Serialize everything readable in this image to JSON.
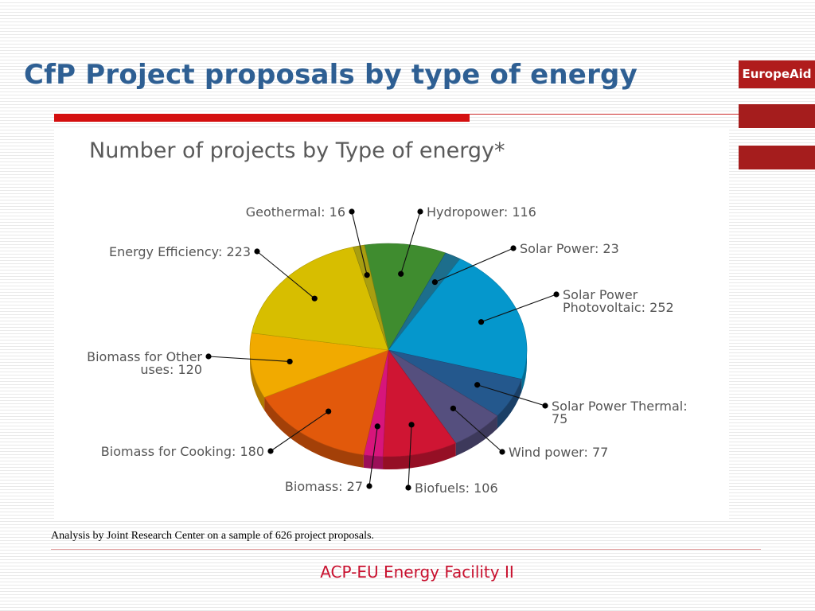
{
  "slide": {
    "title": "CfP Project proposals by type of energy",
    "brand": "EuropeAid",
    "footnote": "Analysis by Joint Research Center on a sample of 626 project proposals.",
    "footer": "ACP-EU Energy Facility II"
  },
  "chart_data": {
    "type": "pie",
    "title": "Number of projects by Type of energy*",
    "slices": [
      {
        "label": "Hydropower: 116",
        "category": "Hydropower",
        "value": 116,
        "color": "#3f8c2f"
      },
      {
        "label": "Solar Power: 23",
        "category": "Solar Power",
        "value": 23,
        "color": "#1d6e8c"
      },
      {
        "label": "Solar Power Photovoltaic: 252",
        "category": "Solar Power Photovoltaic",
        "value": 252,
        "color": "#0597cc"
      },
      {
        "label": "Solar Power Thermal: 75",
        "category": "Solar Power Thermal",
        "value": 75,
        "color": "#24588d"
      },
      {
        "label": "Wind power: 77",
        "category": "Wind power",
        "value": 77,
        "color": "#554f7e"
      },
      {
        "label": "Biofuels: 106",
        "category": "Biofuels",
        "value": 106,
        "color": "#cf1533"
      },
      {
        "label": "Biomass: 27",
        "category": "Biomass",
        "value": 27,
        "color": "#d7157b"
      },
      {
        "label": "Biomass for Cooking: 180",
        "category": "Biomass for Cooking",
        "value": 180,
        "color": "#e2590b"
      },
      {
        "label": "Biomass for Other uses: 120",
        "category": "Biomass for Other uses",
        "value": 120,
        "color": "#f1aa00"
      },
      {
        "label": "Energy Efficiency: 223",
        "category": "Energy Efficiency",
        "value": 223,
        "color": "#d7be00"
      },
      {
        "label": "Geothermal: 16",
        "category": "Geothermal",
        "value": 16,
        "color": "#a89e10"
      }
    ]
  }
}
